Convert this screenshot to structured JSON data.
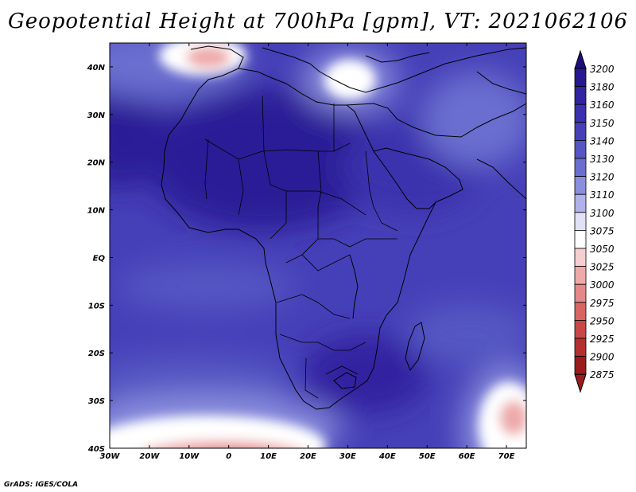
{
  "title": "Geopotential Height at 700hPa [gpm], VT: 2021062106",
  "credit": "GrADS: IGES/COLA",
  "map": {
    "type": "heatmap",
    "lon_range": [
      -30,
      75
    ],
    "lat_range": [
      -40,
      45
    ],
    "x_ticks": [
      "30W",
      "20W",
      "10W",
      "0",
      "10E",
      "20E",
      "30E",
      "40E",
      "50E",
      "60E",
      "70E"
    ],
    "y_ticks": [
      "40N",
      "30N",
      "20N",
      "10N",
      "EQ",
      "10S",
      "20S",
      "30S",
      "40S"
    ],
    "colorbar": {
      "levels": [
        "3200",
        "3180",
        "3160",
        "3150",
        "3140",
        "3130",
        "3120",
        "3110",
        "3100",
        "3075",
        "3050",
        "3025",
        "3000",
        "2975",
        "2950",
        "2925",
        "2900",
        "2875"
      ],
      "colors": [
        "#1c0e7a",
        "#28188f",
        "#3224a0",
        "#3b30ad",
        "#4640b8",
        "#5556c3",
        "#6a6ecf",
        "#8a8edd",
        "#b0b2ea",
        "#e0e0f6",
        "#ffffff",
        "#f5cfcf",
        "#eeaaaa",
        "#e48888",
        "#d86464",
        "#c84848",
        "#b43030",
        "#9a1c1c"
      ]
    }
  }
}
